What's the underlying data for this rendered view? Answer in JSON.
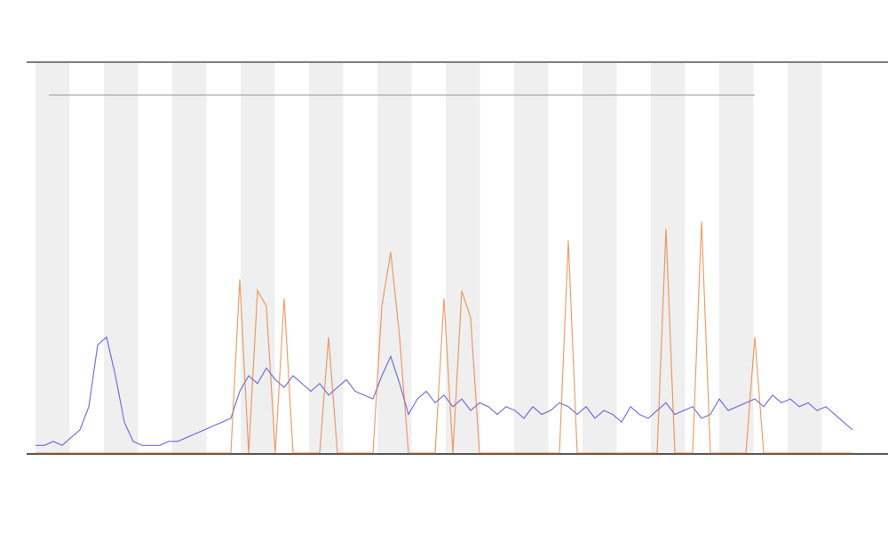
{
  "chart_data": {
    "type": "line",
    "ylim": [
      0,
      100
    ],
    "x": [
      0,
      1,
      2,
      3,
      4,
      5,
      6,
      7,
      8,
      9,
      10,
      11,
      12,
      13,
      14,
      15,
      16,
      17,
      18,
      19,
      20,
      21,
      22,
      23,
      24,
      25,
      26,
      27,
      28,
      29,
      30,
      31,
      32,
      33,
      34,
      35,
      36,
      37,
      38,
      39,
      40,
      41,
      42,
      43,
      44,
      45,
      46,
      47,
      48,
      49,
      50,
      51,
      52,
      53,
      54,
      55,
      56,
      57,
      58,
      59,
      60,
      61,
      62,
      63,
      64,
      65,
      66,
      67,
      68,
      69,
      70,
      71,
      72,
      73,
      74,
      75,
      76,
      77,
      78,
      79,
      80,
      81,
      82,
      83,
      84,
      85,
      86,
      87,
      88,
      89,
      90,
      91,
      92
    ],
    "xlim": [
      0,
      92
    ],
    "series": [
      {
        "color": "#3b3bd6",
        "values": [
          2,
          2,
          3,
          2,
          4,
          6,
          12,
          28,
          30,
          20,
          8,
          3,
          2,
          2,
          2,
          3,
          3,
          4,
          5,
          6,
          7,
          8,
          9,
          16,
          20,
          18,
          22,
          19,
          17,
          20,
          18,
          16,
          18,
          15,
          17,
          19,
          16,
          15,
          14,
          20,
          25,
          18,
          10,
          14,
          16,
          13,
          15,
          12,
          14,
          11,
          13,
          12,
          10,
          12,
          11,
          9,
          12,
          10,
          11,
          13,
          12,
          10,
          12,
          9,
          11,
          10,
          8,
          12,
          10,
          9,
          11,
          13,
          10,
          11,
          12,
          9,
          10,
          14,
          11,
          12,
          13,
          14,
          12,
          15,
          13,
          14,
          12,
          13,
          11,
          12,
          10,
          8,
          6
        ]
      },
      {
        "color": "#e8762c",
        "values": [
          0,
          0,
          0,
          0,
          0,
          0,
          0,
          0,
          0,
          0,
          0,
          0,
          0,
          0,
          0,
          0,
          0,
          0,
          0,
          0,
          0,
          0,
          0,
          45,
          0,
          42,
          38,
          0,
          40,
          0,
          0,
          0,
          0,
          30,
          0,
          0,
          0,
          0,
          0,
          38,
          52,
          30,
          0,
          0,
          0,
          0,
          40,
          0,
          42,
          35,
          0,
          0,
          0,
          0,
          0,
          0,
          0,
          0,
          0,
          0,
          55,
          0,
          0,
          0,
          0,
          0,
          0,
          0,
          0,
          0,
          0,
          58,
          0,
          0,
          0,
          60,
          0,
          0,
          0,
          0,
          0,
          30,
          0,
          0,
          0,
          0,
          0,
          0,
          0,
          0,
          0,
          0,
          0
        ]
      }
    ]
  }
}
